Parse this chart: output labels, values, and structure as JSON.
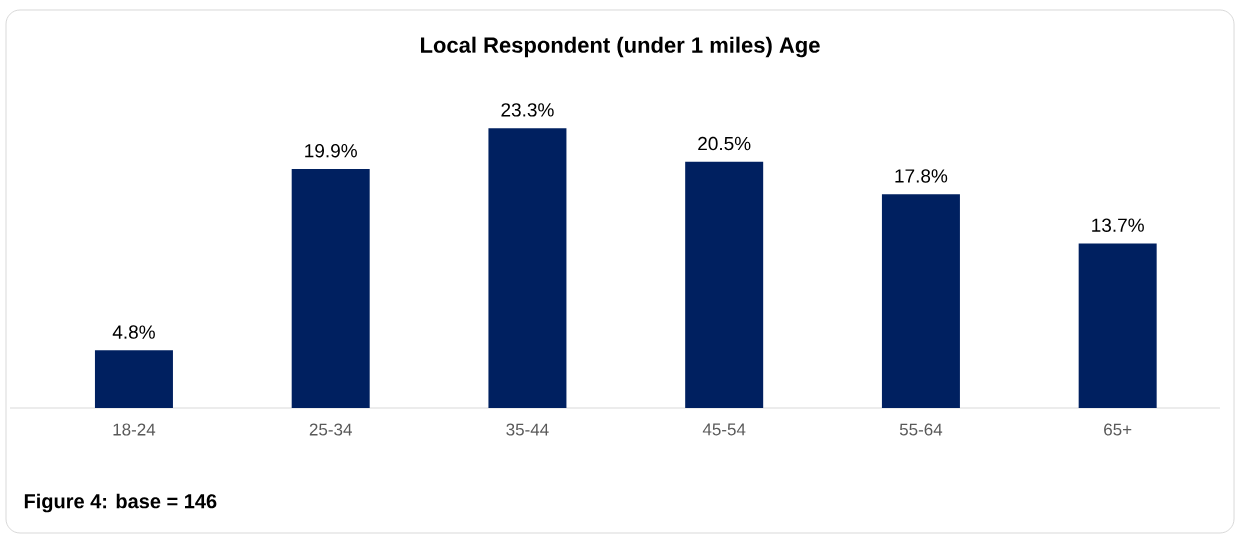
{
  "chart_data": {
    "type": "bar",
    "title": "Local Respondent (under 1 miles) Age",
    "categories": [
      "18-24",
      "25-34",
      "35-44",
      "45-54",
      "55-64",
      "65+"
    ],
    "values": [
      4.8,
      19.9,
      23.3,
      20.5,
      17.8,
      13.7
    ],
    "value_labels": [
      "4.8%",
      "19.9%",
      "23.3%",
      "20.5%",
      "17.8%",
      "13.7%"
    ],
    "color": "#002060",
    "annotations": [
      "Figure 4: base = 146"
    ]
  }
}
